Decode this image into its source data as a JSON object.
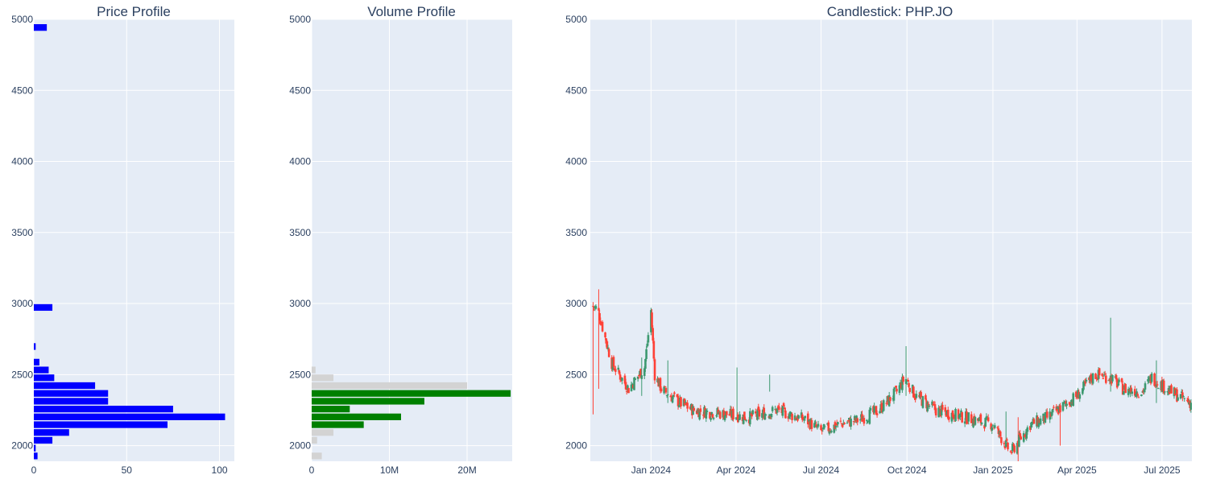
{
  "colors": {
    "plot_bg": "#E5ECF6",
    "grid": "#ffffff",
    "text": "#2a3f5f",
    "price_bar": "#0000ff",
    "vol_in_range": "#008000",
    "vol_out_range": "#d3d3d3",
    "candle_up": "#3d9970",
    "candle_down": "#ff4136"
  },
  "titles": {
    "price_profile": "Price Profile",
    "volume_profile": "Volume Profile",
    "candlestick": "Candlestick: PHP.JO"
  },
  "chart_data": [
    {
      "type": "bar",
      "orientation": "horizontal",
      "title": "Price Profile",
      "xlim": [
        0,
        108
      ],
      "ylim": [
        1890,
        5000
      ],
      "x_ticks": [
        0,
        50,
        100
      ],
      "y_ticks": [
        2000,
        2500,
        3000,
        3500,
        4000,
        4500,
        5000
      ],
      "bin_height": 55,
      "bins": [
        {
          "price": 1900,
          "count": 2
        },
        {
          "price": 1955,
          "count": 1
        },
        {
          "price": 2010,
          "count": 10
        },
        {
          "price": 2065,
          "count": 19
        },
        {
          "price": 2120,
          "count": 72
        },
        {
          "price": 2175,
          "count": 103
        },
        {
          "price": 2230,
          "count": 75
        },
        {
          "price": 2285,
          "count": 40
        },
        {
          "price": 2340,
          "count": 40
        },
        {
          "price": 2395,
          "count": 33
        },
        {
          "price": 2450,
          "count": 11
        },
        {
          "price": 2505,
          "count": 8
        },
        {
          "price": 2560,
          "count": 3
        },
        {
          "price": 2670,
          "count": 1
        },
        {
          "price": 2945,
          "count": 10
        },
        {
          "price": 4915,
          "count": 7
        }
      ]
    },
    {
      "type": "bar",
      "orientation": "horizontal",
      "title": "Volume Profile",
      "xlim": [
        0,
        25800000
      ],
      "ylim": [
        1890,
        5000
      ],
      "x_ticks": [
        {
          "value": 0,
          "label": "0"
        },
        {
          "value": 10000000,
          "label": "10M"
        },
        {
          "value": 20000000,
          "label": "20M"
        }
      ],
      "y_ticks": [
        2000,
        2500,
        3000,
        3500,
        4000,
        4500,
        5000
      ],
      "bin_height": 55,
      "bins": [
        {
          "price": 1900,
          "volume": 1300000,
          "in_value_area": false
        },
        {
          "price": 2010,
          "volume": 700000,
          "in_value_area": false
        },
        {
          "price": 2065,
          "volume": 2800000,
          "in_value_area": false
        },
        {
          "price": 2120,
          "volume": 6700000,
          "in_value_area": true
        },
        {
          "price": 2175,
          "volume": 11500000,
          "in_value_area": true
        },
        {
          "price": 2230,
          "volume": 4900000,
          "in_value_area": true
        },
        {
          "price": 2285,
          "volume": 14500000,
          "in_value_area": true
        },
        {
          "price": 2340,
          "volume": 25600000,
          "in_value_area": true
        },
        {
          "price": 2395,
          "volume": 20000000,
          "in_value_area": false
        },
        {
          "price": 2450,
          "volume": 2800000,
          "in_value_area": false
        },
        {
          "price": 2505,
          "volume": 500000,
          "in_value_area": false
        }
      ]
    },
    {
      "type": "candlestick",
      "title": "Candlestick: PHP.JO",
      "xlim": [
        "2023-10-28",
        "2025-08-02"
      ],
      "ylim": [
        1890,
        5000
      ],
      "y_ticks": [
        2000,
        2500,
        3000,
        3500,
        4000,
        4500,
        5000
      ],
      "x_ticks": [
        {
          "date": "2024-01-01",
          "label": "Jan 2024"
        },
        {
          "date": "2024-04-01",
          "label": "Apr 2024"
        },
        {
          "date": "2024-07-01",
          "label": "Jul 2024"
        },
        {
          "date": "2024-10-01",
          "label": "Oct 2024"
        },
        {
          "date": "2025-01-01",
          "label": "Jan 2025"
        },
        {
          "date": "2025-04-01",
          "label": "Apr 2025"
        },
        {
          "date": "2025-07-01",
          "label": "Jul 2025"
        }
      ],
      "anchor_points": [
        {
          "date": "2023-10-31",
          "close": 2980
        },
        {
          "date": "2023-11-05",
          "close": 2960
        },
        {
          "date": "2023-11-20",
          "close": 2580
        },
        {
          "date": "2023-12-08",
          "close": 2400
        },
        {
          "date": "2023-12-25",
          "close": 2550
        },
        {
          "date": "2024-01-01",
          "close": 2950
        },
        {
          "date": "2024-01-05",
          "close": 2500
        },
        {
          "date": "2024-01-12",
          "close": 2400
        },
        {
          "date": "2024-02-01",
          "close": 2300
        },
        {
          "date": "2024-02-15",
          "close": 2250
        },
        {
          "date": "2024-03-10",
          "close": 2230
        },
        {
          "date": "2024-04-15",
          "close": 2200
        },
        {
          "date": "2024-05-15",
          "close": 2250
        },
        {
          "date": "2024-06-15",
          "close": 2180
        },
        {
          "date": "2024-07-01",
          "close": 2100
        },
        {
          "date": "2024-07-20",
          "close": 2150
        },
        {
          "date": "2024-08-10",
          "close": 2180
        },
        {
          "date": "2024-09-01",
          "close": 2250
        },
        {
          "date": "2024-09-20",
          "close": 2380
        },
        {
          "date": "2024-09-29",
          "close": 2480
        },
        {
          "date": "2024-10-10",
          "close": 2350
        },
        {
          "date": "2024-11-01",
          "close": 2250
        },
        {
          "date": "2024-12-01",
          "close": 2200
        },
        {
          "date": "2025-01-01",
          "close": 2150
        },
        {
          "date": "2025-01-20",
          "close": 1950
        },
        {
          "date": "2025-02-10",
          "close": 2150
        },
        {
          "date": "2025-03-01",
          "close": 2200
        },
        {
          "date": "2025-04-01",
          "close": 2350
        },
        {
          "date": "2025-04-20",
          "close": 2500
        },
        {
          "date": "2025-05-07",
          "close": 2480
        },
        {
          "date": "2025-05-20",
          "close": 2400
        },
        {
          "date": "2025-06-10",
          "close": 2380
        },
        {
          "date": "2025-06-20",
          "close": 2480
        },
        {
          "date": "2025-07-10",
          "close": 2380
        },
        {
          "date": "2025-08-01",
          "close": 2300
        }
      ],
      "spikes": [
        {
          "date": "2023-10-31",
          "high": 3010,
          "low": 2220
        },
        {
          "date": "2023-11-06",
          "high": 3100,
          "low": 2400
        },
        {
          "date": "2023-12-22",
          "high": 2620,
          "low": 2350
        },
        {
          "date": "2024-01-06",
          "high": 2800,
          "low": 2330
        },
        {
          "date": "2024-01-19",
          "high": 2600,
          "low": 2300
        },
        {
          "date": "2024-04-02",
          "high": 2550,
          "low": 2200
        },
        {
          "date": "2024-05-07",
          "high": 2500,
          "low": 2380
        },
        {
          "date": "2024-09-30",
          "high": 2700,
          "low": 2350
        },
        {
          "date": "2024-11-10",
          "high": 2300,
          "low": 2000
        },
        {
          "date": "2025-01-15",
          "high": 2240,
          "low": 1990
        },
        {
          "date": "2025-01-28",
          "high": 2200,
          "low": 1870
        },
        {
          "date": "2025-03-14",
          "high": 2300,
          "low": 2000
        },
        {
          "date": "2025-05-07",
          "high": 2900,
          "low": 2380
        },
        {
          "date": "2025-06-25",
          "high": 2600,
          "low": 2300
        }
      ]
    }
  ]
}
